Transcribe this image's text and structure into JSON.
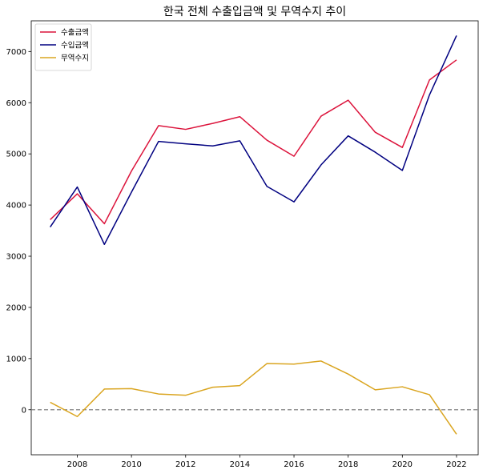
{
  "chart_data": {
    "type": "line",
    "title": "한국 전체 수출입금액 및 무역수지 추이",
    "xlabel": "",
    "ylabel": "",
    "x": [
      2007,
      2008,
      2009,
      2010,
      2011,
      2012,
      2013,
      2014,
      2015,
      2016,
      2017,
      2018,
      2019,
      2020,
      2021,
      2022
    ],
    "xlim": [
      2006.3,
      2022.8
    ],
    "ylim": [
      -880,
      7600
    ],
    "xticks": [
      2008,
      2010,
      2012,
      2014,
      2016,
      2018,
      2020,
      2022
    ],
    "yticks": [
      0,
      1000,
      2000,
      3000,
      4000,
      5000,
      6000,
      7000
    ],
    "grid": false,
    "legend_position": "top-left",
    "reference_line": {
      "y": 0,
      "style": "dashed",
      "color": "#808080"
    },
    "series": [
      {
        "name": "수출금액",
        "color": "#dc143c",
        "values": [
          3715,
          4220,
          3635,
          4664,
          5552,
          5479,
          5596,
          5727,
          5268,
          4954,
          5737,
          6049,
          5422,
          5125,
          6444,
          6836
        ]
      },
      {
        "name": "수입금액",
        "color": "#000080",
        "values": [
          3570,
          4353,
          3231,
          4252,
          5244,
          5196,
          5156,
          5255,
          4365,
          4062,
          4785,
          5352,
          5033,
          4676,
          6150,
          7312
        ]
      },
      {
        "name": "무역수지",
        "color": "#daa520",
        "values": [
          146,
          -133,
          404,
          412,
          308,
          283,
          440,
          472,
          903,
          892,
          952,
          697,
          389,
          449,
          294,
          -478
        ]
      }
    ]
  }
}
